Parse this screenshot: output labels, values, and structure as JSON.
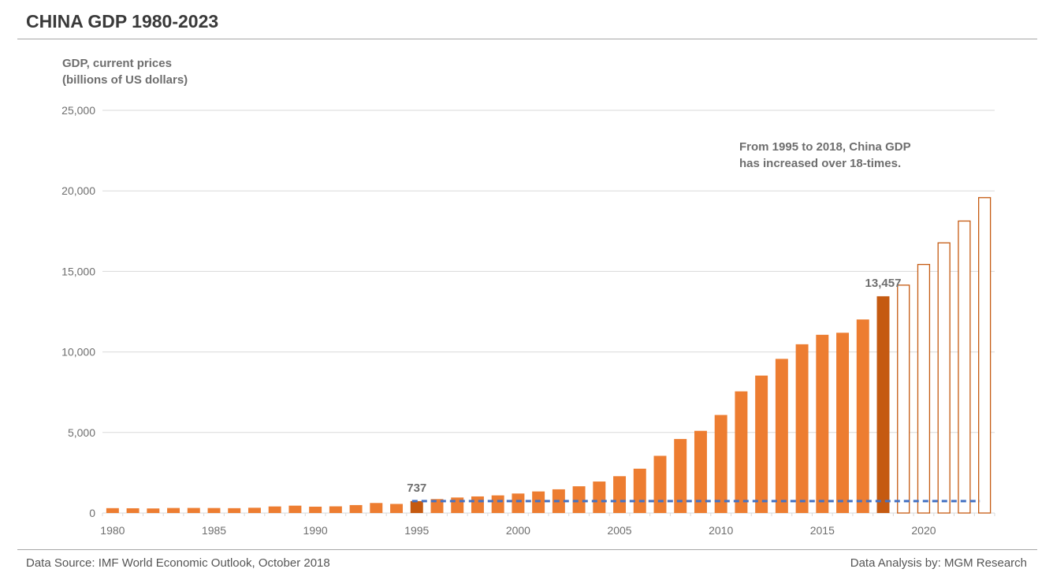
{
  "header": {
    "title": "CHINA GDP 1980-2023"
  },
  "footer": {
    "source": "Data Source: IMF World Economic Outlook, October 2018",
    "analysis": "Data Analysis by: MGM Research"
  },
  "colors": {
    "actual_bar": "#ED7D31",
    "highlight_bar": "#C55A11",
    "forecast_outline": "#C55A11",
    "reference_line": "#4472C4",
    "gridline": "#d9d9d9",
    "text": "#6e6e6e"
  },
  "chart_data": {
    "type": "bar",
    "title": "CHINA GDP 1980-2023",
    "ylabel_lines": [
      "GDP, current prices",
      "(billions of US dollars)"
    ],
    "xlabel": "",
    "ylim": [
      0,
      25000
    ],
    "yticks": [
      0,
      5000,
      10000,
      15000,
      20000,
      25000
    ],
    "ytick_labels": [
      "0",
      "5,000",
      "10,000",
      "15,000",
      "20,000",
      "25,000"
    ],
    "xtick_labels": [
      "1980",
      "1985",
      "1990",
      "1995",
      "2000",
      "2005",
      "2010",
      "2015",
      "2020"
    ],
    "grid": true,
    "categories": [
      1980,
      1981,
      1982,
      1983,
      1984,
      1985,
      1986,
      1987,
      1988,
      1989,
      1990,
      1991,
      1992,
      1993,
      1994,
      1995,
      1996,
      1997,
      1998,
      1999,
      2000,
      2001,
      2002,
      2003,
      2004,
      2005,
      2006,
      2007,
      2008,
      2009,
      2010,
      2011,
      2012,
      2013,
      2014,
      2015,
      2016,
      2017,
      2018,
      2019,
      2020,
      2021,
      2022,
      2023
    ],
    "values": [
      303,
      295,
      284,
      312,
      315,
      310,
      301,
      326,
      408,
      457,
      394,
      414,
      493,
      622,
      564,
      737,
      867,
      962,
      1029,
      1094,
      1211,
      1339,
      1471,
      1660,
      1955,
      2286,
      2752,
      3550,
      4594,
      5102,
      6087,
      7552,
      8532,
      9570,
      10476,
      11065,
      11191,
      12015,
      13457,
      14172,
      15455,
      16797,
      18151,
      19605
    ],
    "highlight": {
      "1995": {
        "value": 737,
        "label": "737"
      },
      "2018": {
        "value": 13457,
        "label": "13,457"
      }
    },
    "forecast_from": 2019,
    "reference_line": {
      "value": 737,
      "from": 1995,
      "to": 2023,
      "style": "dashed"
    },
    "annotation": [
      "From 1995 to 2018, China GDP",
      "has increased over 18-times."
    ]
  }
}
